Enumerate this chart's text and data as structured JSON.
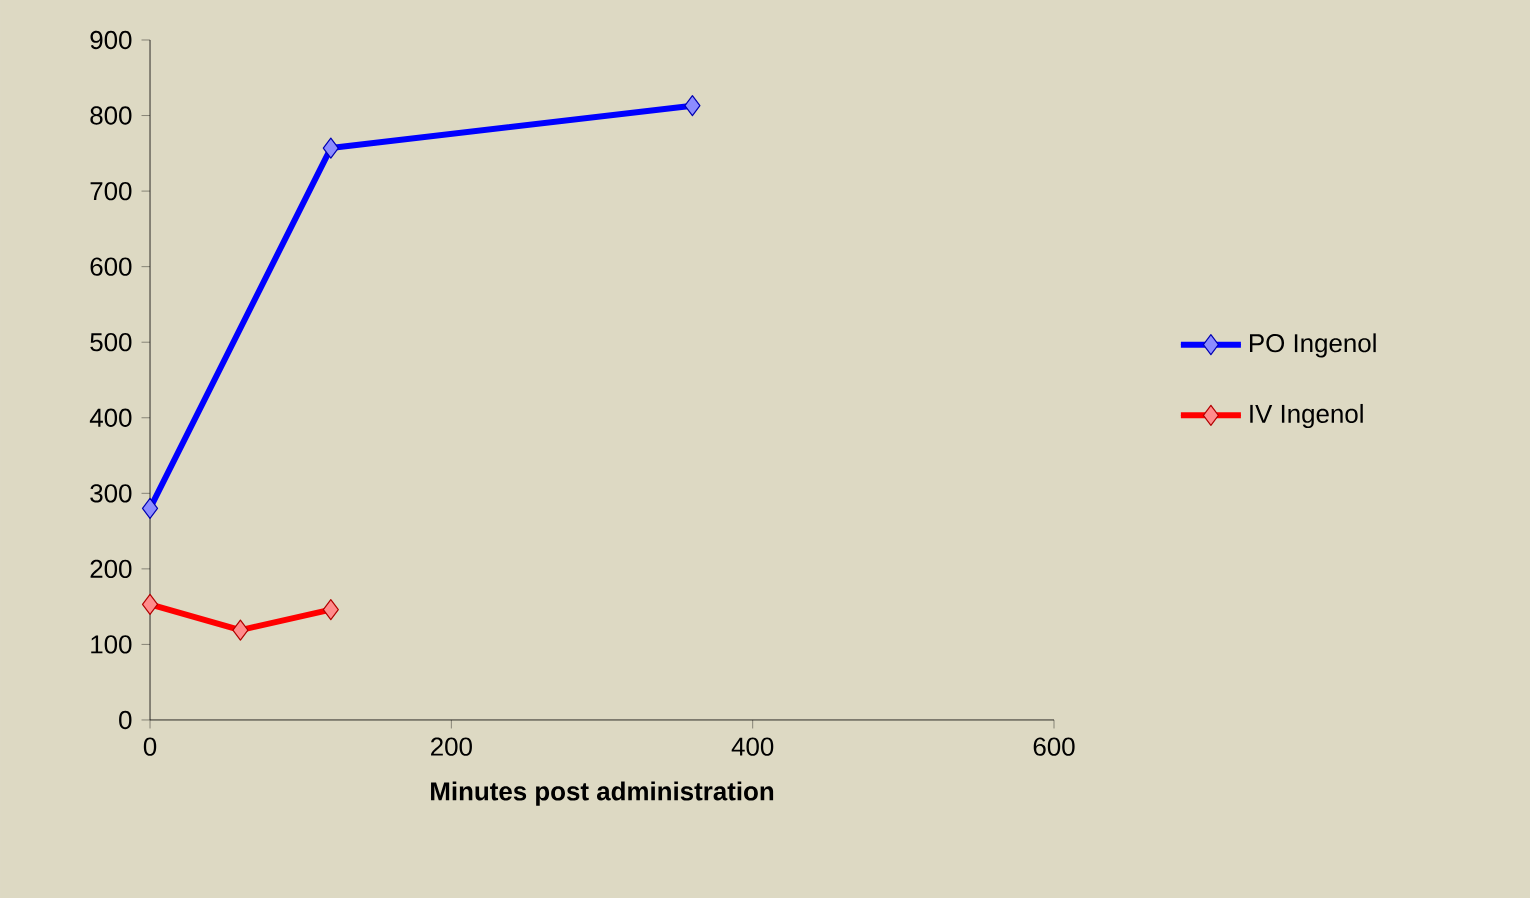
{
  "chart_data": {
    "type": "line",
    "xlabel": "Minutes post administration",
    "xlim": [
      0,
      600
    ],
    "xticks": [
      0,
      200,
      400,
      600
    ],
    "ylim": [
      0,
      900
    ],
    "yticks": [
      0,
      100,
      200,
      300,
      400,
      500,
      600,
      700,
      800,
      900
    ],
    "legend": "right",
    "marker": "diamond",
    "line_style": "solid",
    "series": [
      {
        "name": "PO Ingenol",
        "color": "#0000ff",
        "x": [
          0,
          120,
          360
        ],
        "values": [
          280,
          757,
          813
        ]
      },
      {
        "name": "IV Ingenol",
        "color": "#ff0000",
        "x": [
          0,
          60,
          120
        ],
        "values": [
          153,
          119,
          146
        ]
      }
    ]
  }
}
